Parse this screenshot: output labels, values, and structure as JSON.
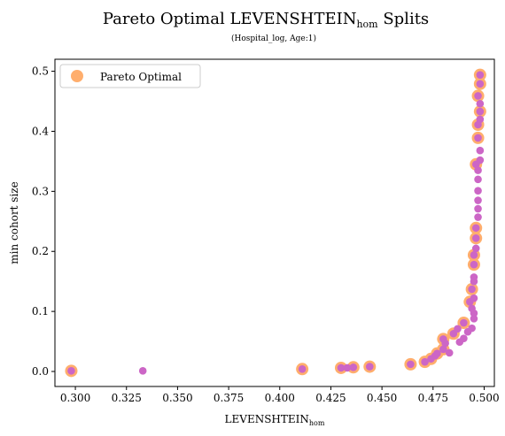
{
  "chart_data": {
    "type": "scatter",
    "title": {
      "main": "Pareto Optimal LEVENSHTEIN",
      "sub": "hom",
      "suffix": " Splits"
    },
    "subtitle": "(Hospital_log, Age:1)",
    "xlabel": {
      "main": "LEVENSHTEIN",
      "sub": "hom"
    },
    "ylabel": "min cohort size",
    "xlim": [
      0.29,
      0.505
    ],
    "ylim": [
      -0.025,
      0.52
    ],
    "xticks": [
      0.3,
      0.325,
      0.35,
      0.375,
      0.4,
      0.425,
      0.45,
      0.475,
      0.5
    ],
    "xtick_labels": [
      "0.300",
      "0.325",
      "0.350",
      "0.375",
      "0.400",
      "0.425",
      "0.450",
      "0.475",
      "0.500"
    ],
    "yticks": [
      0.0,
      0.1,
      0.2,
      0.3,
      0.4,
      0.5
    ],
    "ytick_labels": [
      "0.0",
      "0.1",
      "0.2",
      "0.3",
      "0.4",
      "0.5"
    ],
    "grid": false,
    "legend": {
      "position": "top-left",
      "entries": [
        "Pareto Optimal"
      ]
    },
    "colors": {
      "pareto": "#ffae6d",
      "points": "#cc66c6"
    },
    "series": [
      {
        "name": "Pareto Optimal",
        "points": [
          [
            0.298,
            0.001
          ],
          [
            0.411,
            0.004
          ],
          [
            0.43,
            0.006
          ],
          [
            0.436,
            0.007
          ],
          [
            0.444,
            0.008
          ],
          [
            0.464,
            0.012
          ],
          [
            0.471,
            0.016
          ],
          [
            0.474,
            0.021
          ],
          [
            0.477,
            0.03
          ],
          [
            0.48,
            0.037
          ],
          [
            0.48,
            0.054
          ],
          [
            0.485,
            0.063
          ],
          [
            0.49,
            0.081
          ],
          [
            0.493,
            0.116
          ],
          [
            0.494,
            0.137
          ],
          [
            0.495,
            0.178
          ],
          [
            0.495,
            0.194
          ],
          [
            0.496,
            0.222
          ],
          [
            0.496,
            0.239
          ],
          [
            0.496,
            0.345
          ],
          [
            0.497,
            0.389
          ],
          [
            0.497,
            0.411
          ],
          [
            0.498,
            0.433
          ],
          [
            0.497,
            0.459
          ],
          [
            0.498,
            0.479
          ],
          [
            0.498,
            0.494
          ]
        ]
      },
      {
        "points": [
          [
            0.298,
            0.001
          ],
          [
            0.333,
            0.001
          ],
          [
            0.411,
            0.004
          ],
          [
            0.43,
            0.006
          ],
          [
            0.433,
            0.006
          ],
          [
            0.436,
            0.007
          ],
          [
            0.444,
            0.008
          ],
          [
            0.464,
            0.012
          ],
          [
            0.471,
            0.016
          ],
          [
            0.474,
            0.021
          ],
          [
            0.476,
            0.026
          ],
          [
            0.477,
            0.03
          ],
          [
            0.48,
            0.037
          ],
          [
            0.481,
            0.047
          ],
          [
            0.48,
            0.054
          ],
          [
            0.483,
            0.031
          ],
          [
            0.485,
            0.063
          ],
          [
            0.487,
            0.071
          ],
          [
            0.488,
            0.049
          ],
          [
            0.49,
            0.055
          ],
          [
            0.49,
            0.081
          ],
          [
            0.492,
            0.066
          ],
          [
            0.494,
            0.072
          ],
          [
            0.495,
            0.088
          ],
          [
            0.495,
            0.097
          ],
          [
            0.493,
            0.116
          ],
          [
            0.494,
            0.105
          ],
          [
            0.495,
            0.122
          ],
          [
            0.494,
            0.137
          ],
          [
            0.495,
            0.15
          ],
          [
            0.495,
            0.157
          ],
          [
            0.495,
            0.178
          ],
          [
            0.495,
            0.194
          ],
          [
            0.496,
            0.205
          ],
          [
            0.496,
            0.222
          ],
          [
            0.496,
            0.239
          ],
          [
            0.497,
            0.257
          ],
          [
            0.497,
            0.271
          ],
          [
            0.497,
            0.285
          ],
          [
            0.497,
            0.301
          ],
          [
            0.497,
            0.32
          ],
          [
            0.496,
            0.345
          ],
          [
            0.497,
            0.335
          ],
          [
            0.498,
            0.352
          ],
          [
            0.498,
            0.368
          ],
          [
            0.497,
            0.389
          ],
          [
            0.497,
            0.411
          ],
          [
            0.498,
            0.42
          ],
          [
            0.498,
            0.433
          ],
          [
            0.498,
            0.446
          ],
          [
            0.497,
            0.459
          ],
          [
            0.498,
            0.479
          ],
          [
            0.498,
            0.494
          ]
        ]
      }
    ]
  }
}
